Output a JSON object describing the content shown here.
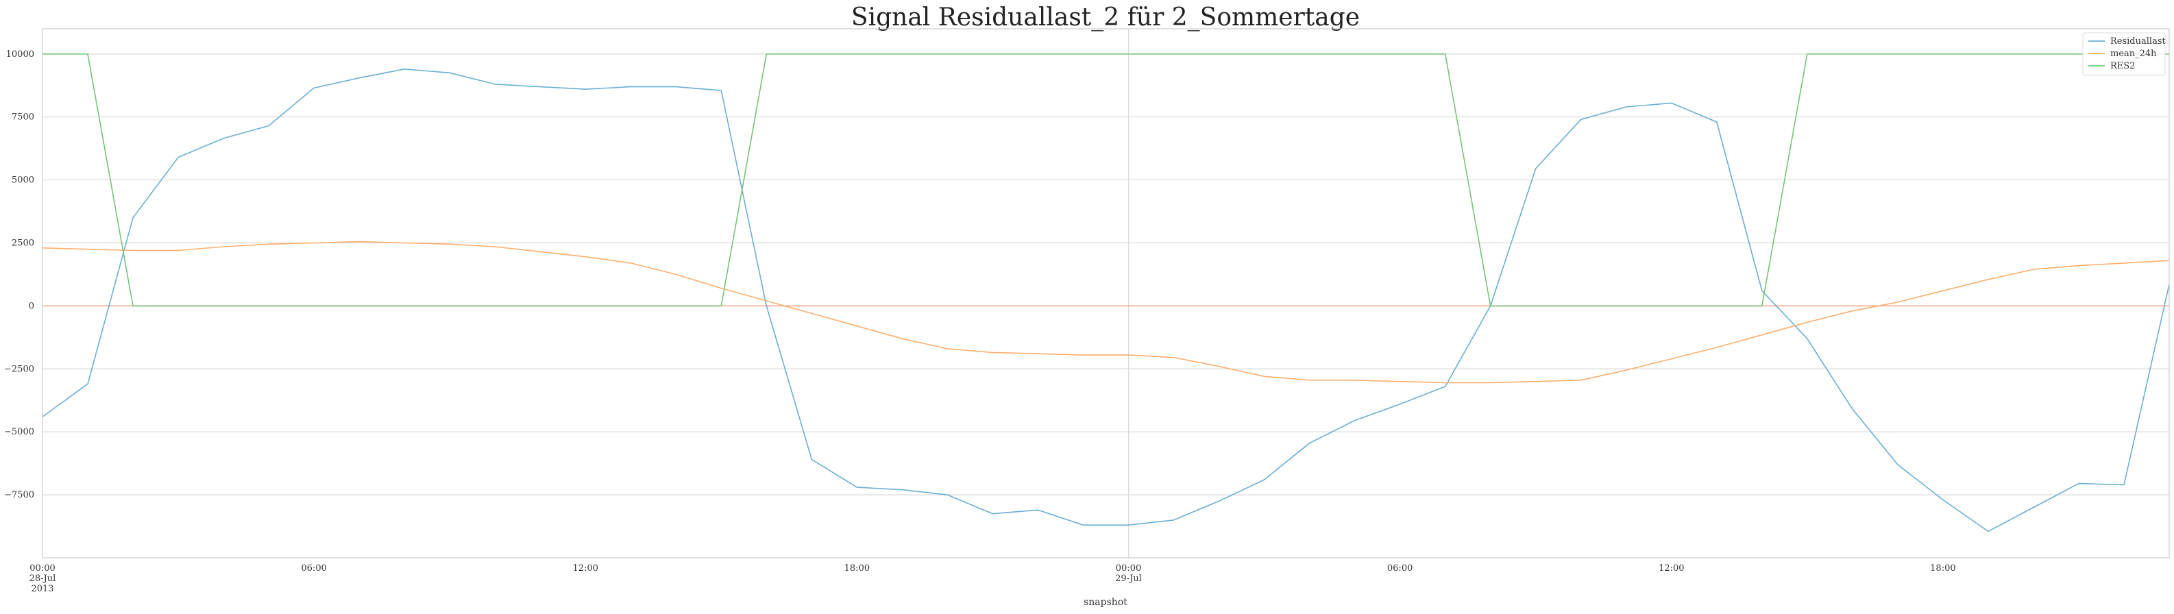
{
  "chart_data": {
    "type": "line",
    "title": "Signal Residuallast_2 für 2_Sommertage",
    "xlabel": "snapshot",
    "ylabel": "",
    "ylim": [
      -10000,
      11000
    ],
    "yticks": [
      10000,
      7500,
      5000,
      2500,
      0,
      -2500,
      -5000,
      -7500
    ],
    "ytick_labels": [
      "10000",
      "7500",
      "5000",
      "2500",
      "0",
      "−2500",
      "−5000",
      "−7500"
    ],
    "xlim_hours": [
      0,
      47
    ],
    "x_hours": [
      0,
      1,
      2,
      3,
      4,
      5,
      6,
      7,
      8,
      9,
      10,
      11,
      12,
      13,
      14,
      15,
      16,
      17,
      18,
      19,
      20,
      21,
      22,
      23,
      24,
      25,
      26,
      27,
      28,
      29,
      30,
      31,
      32,
      33,
      34,
      35,
      36,
      37,
      38,
      39,
      40,
      41,
      42,
      43,
      44,
      45,
      46,
      47
    ],
    "xticks": [
      {
        "hour": 0,
        "label": "00:00",
        "sub": "28-Jul",
        "sub2": "2013"
      },
      {
        "hour": 6,
        "label": "06:00"
      },
      {
        "hour": 12,
        "label": "12:00"
      },
      {
        "hour": 18,
        "label": "18:00"
      },
      {
        "hour": 24,
        "label": "00:00",
        "sub": "29-Jul"
      },
      {
        "hour": 30,
        "label": "06:00"
      },
      {
        "hour": 36,
        "label": "12:00"
      },
      {
        "hour": 42,
        "label": "18:00"
      }
    ],
    "hline_zero_color": "#f4a582",
    "grid": true,
    "legend_position": "top-right",
    "series": [
      {
        "name": "Residuallast",
        "color": "#6aaed6",
        "values": [
          -4400,
          -3100,
          3500,
          5900,
          6650,
          7150,
          8650,
          9050,
          9400,
          9250,
          8800,
          8700,
          8600,
          8700,
          8700,
          8550,
          0,
          -6100,
          -7200,
          -7300,
          -7500,
          -8250,
          -8100,
          -8700,
          -8700,
          -8500,
          -7750,
          -6900,
          -5450,
          -4550,
          -3900,
          -3200,
          0,
          5450,
          7400,
          7900,
          8050,
          7300,
          600,
          -1300,
          -4100,
          -6300,
          -7700,
          -8950,
          -8000,
          -7050,
          -7100,
          850
        ]
      },
      {
        "name": "mean_24h",
        "color": "#fdae6b",
        "values": [
          2300,
          2250,
          2200,
          2200,
          2350,
          2450,
          2500,
          2550,
          2500,
          2450,
          2350,
          2150,
          1950,
          1700,
          1250,
          700,
          200,
          -300,
          -800,
          -1300,
          -1700,
          -1850,
          -1900,
          -1950,
          -1950,
          -2050,
          -2400,
          -2800,
          -2950,
          -2950,
          -3000,
          -3050,
          -3050,
          -3000,
          -2950,
          -2550,
          -2100,
          -1650,
          -1150,
          -650,
          -200,
          150,
          600,
          1050,
          1450,
          1600,
          1700,
          1800
        ]
      },
      {
        "name": "RES2",
        "color": "#74c476",
        "values": [
          10000,
          10000,
          0,
          0,
          0,
          0,
          0,
          0,
          0,
          0,
          0,
          0,
          0,
          0,
          0,
          0,
          10000,
          10000,
          10000,
          10000,
          10000,
          10000,
          10000,
          10000,
          10000,
          10000,
          10000,
          10000,
          10000,
          10000,
          10000,
          10000,
          0,
          0,
          0,
          0,
          0,
          0,
          0,
          10000,
          10000,
          10000,
          10000,
          10000,
          10000,
          10000,
          10000,
          10000
        ]
      }
    ]
  }
}
